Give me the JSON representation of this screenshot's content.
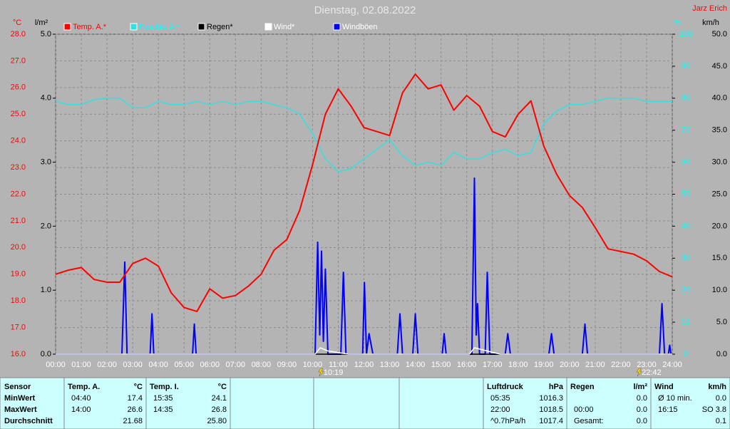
{
  "chart_data": {
    "type": "line",
    "title": "Dienstag, 02.08.2022",
    "author": "Jarz Erich",
    "y_label": "°C",
    "y2_label": "%",
    "y3_label": "l/m²",
    "y4_label": "km/h",
    "xlim": [
      0,
      24
    ],
    "xticks": [
      {
        "value": 0,
        "label": "00:00"
      },
      {
        "value": 1,
        "label": "01:00"
      },
      {
        "value": 2,
        "label": "02:00"
      },
      {
        "value": 3,
        "label": "03:00"
      },
      {
        "value": 4,
        "label": "04:00"
      },
      {
        "value": 5,
        "label": "05:00"
      },
      {
        "value": 6,
        "label": "06:00"
      },
      {
        "value": 7,
        "label": "07:00"
      },
      {
        "value": 8,
        "label": "08:00"
      },
      {
        "value": 9,
        "label": "09:00"
      },
      {
        "value": 10,
        "label": "10:00"
      },
      {
        "value": 11,
        "label": "11:00"
      },
      {
        "value": 12,
        "label": "12:00"
      },
      {
        "value": 13,
        "label": "13:00"
      },
      {
        "value": 14,
        "label": "14:00"
      },
      {
        "value": 15,
        "label": "15:00"
      },
      {
        "value": 16,
        "label": "16:00"
      },
      {
        "value": 17,
        "label": "17:00"
      },
      {
        "value": 18,
        "label": "18:00"
      },
      {
        "value": 19,
        "label": "19:00"
      },
      {
        "value": 20,
        "label": "20:00"
      },
      {
        "value": 21,
        "label": "21:00"
      },
      {
        "value": 22,
        "label": "22:00"
      },
      {
        "value": 23,
        "label": "23:00"
      },
      {
        "value": 24,
        "label": "24:00"
      }
    ],
    "ylim": [
      16,
      28
    ],
    "yticks": [
      {
        "value": 16,
        "label": "16.0"
      },
      {
        "value": 17,
        "label": "17.0"
      },
      {
        "value": 18,
        "label": "18.0"
      },
      {
        "value": 19,
        "label": "19.0"
      },
      {
        "value": 20,
        "label": "20.0"
      },
      {
        "value": 21,
        "label": "21.0"
      },
      {
        "value": 22,
        "label": "22.0"
      },
      {
        "value": 23,
        "label": "23.0"
      },
      {
        "value": 24,
        "label": "24.0"
      },
      {
        "value": 25,
        "label": "25.0"
      },
      {
        "value": 26,
        "label": "26.0"
      },
      {
        "value": 27,
        "label": "27.0"
      },
      {
        "value": 28,
        "label": "28.0"
      }
    ],
    "y2lim": [
      0,
      100
    ],
    "y2ticks": [
      0,
      10,
      20,
      30,
      40,
      50,
      60,
      70,
      80,
      90,
      100
    ],
    "y3lim": [
      0,
      5
    ],
    "y3ticks": [
      {
        "value": 0,
        "label": "0.0"
      },
      {
        "value": 1,
        "label": "1.0"
      },
      {
        "value": 2,
        "label": "2.0"
      },
      {
        "value": 3,
        "label": "3.0"
      },
      {
        "value": 4,
        "label": "4.0"
      },
      {
        "value": 5,
        "label": "5.0"
      }
    ],
    "y4lim": [
      0,
      50
    ],
    "y4ticks": [
      {
        "value": 0,
        "label": "0.0"
      },
      {
        "value": 5,
        "label": "5.0"
      },
      {
        "value": 10,
        "label": "10.0"
      },
      {
        "value": 15,
        "label": "15.0"
      },
      {
        "value": 20,
        "label": "20.0"
      },
      {
        "value": 25,
        "label": "25.0"
      },
      {
        "value": 30,
        "label": "30.0"
      },
      {
        "value": 35,
        "label": "35.0"
      },
      {
        "value": 40,
        "label": "40.0"
      },
      {
        "value": 45,
        "label": "45.0"
      },
      {
        "value": 50,
        "label": "50.0"
      }
    ],
    "grid": true,
    "series": [
      {
        "name": "Temp. A.*",
        "color": "#ff0000",
        "axis": "y",
        "x": [
          0,
          0.5,
          1,
          1.5,
          2,
          2.5,
          3,
          3.5,
          4,
          4.5,
          5,
          5.5,
          6,
          6.5,
          7,
          7.5,
          8,
          8.5,
          9,
          9.5,
          10,
          10.5,
          11,
          11.5,
          12,
          12.5,
          13,
          13.5,
          14,
          14.5,
          15,
          15.5,
          16,
          16.5,
          17,
          17.5,
          18,
          18.5,
          19,
          19.5,
          20,
          20.5,
          21,
          21.5,
          22,
          22.5,
          23,
          23.5,
          24
        ],
        "values": [
          19.0,
          19.15,
          19.25,
          18.8,
          18.7,
          18.7,
          19.4,
          19.6,
          19.3,
          18.3,
          17.75,
          17.6,
          18.45,
          18.1,
          18.2,
          18.55,
          19.0,
          19.9,
          20.3,
          21.4,
          23.1,
          25.0,
          25.95,
          25.3,
          24.5,
          24.35,
          24.2,
          25.8,
          26.5,
          25.95,
          26.1,
          25.15,
          25.7,
          25.3,
          24.35,
          24.15,
          25.0,
          25.5,
          23.8,
          22.75,
          21.95,
          21.5,
          20.75,
          19.95,
          19.85,
          19.75,
          19.5,
          19.1,
          18.9
        ]
      },
      {
        "name": "Feuchte A.*",
        "color": "#33e0e0",
        "axis": "y2",
        "x": [
          0,
          0.5,
          1,
          1.5,
          2,
          2.5,
          3,
          3.5,
          4,
          4.5,
          5,
          5.5,
          6,
          6.5,
          7,
          7.5,
          8,
          8.5,
          9,
          9.5,
          10,
          10.5,
          11,
          11.5,
          12,
          12.5,
          13,
          13.5,
          14,
          14.5,
          15,
          15.5,
          16,
          16.5,
          17,
          17.5,
          18,
          18.5,
          19,
          19.5,
          20,
          20.5,
          21,
          21.5,
          22,
          22.5,
          23,
          23.5,
          24
        ],
        "values": [
          79,
          78,
          78,
          79.5,
          80,
          80,
          77,
          77,
          79,
          78,
          78,
          79,
          78,
          79,
          78,
          79,
          79,
          78,
          77,
          75,
          69,
          61,
          57,
          58,
          61,
          64,
          67,
          62,
          59,
          60,
          59,
          63,
          61,
          61,
          63,
          64,
          62,
          63,
          72,
          76,
          78,
          78,
          79,
          80,
          80,
          80,
          79,
          79,
          79
        ]
      },
      {
        "name": "Regen*",
        "color": "#000000",
        "axis": "y3",
        "x": [
          0,
          24
        ],
        "values": [
          0,
          0
        ]
      },
      {
        "name": "Wind*",
        "color": "#ffffff",
        "axis": "y4",
        "x": [
          0,
          10.1,
          10.3,
          10.6,
          11.4,
          16.1,
          16.3,
          16.8,
          17.3,
          24
        ],
        "values": [
          0,
          0,
          1,
          0.5,
          0,
          0,
          1,
          0.5,
          0,
          0
        ]
      },
      {
        "name": "Windböen",
        "color": "#0000ff",
        "axis": "y4",
        "x": [
          0,
          2.58,
          2.69,
          2.78,
          3.68,
          3.75,
          3.82,
          5.33,
          5.4,
          5.47,
          10.1,
          10.2,
          10.28,
          10.35,
          10.42,
          10.5,
          10.6,
          11.1,
          11.2,
          11.3,
          11.95,
          12.02,
          12.1,
          12.2,
          12.35,
          13.3,
          13.4,
          13.5,
          13.9,
          14.0,
          14.1,
          15.05,
          15.12,
          15.2,
          16.2,
          16.3,
          16.37,
          16.42,
          16.5,
          16.72,
          16.8,
          16.9,
          17.5,
          17.6,
          17.7,
          19.2,
          19.3,
          19.4,
          20.5,
          20.6,
          20.7,
          23.5,
          23.6,
          23.7,
          23.85,
          23.9,
          23.95,
          24
        ],
        "values": [
          0,
          0,
          14.4,
          0,
          0,
          6.3,
          0,
          0,
          4.7,
          0,
          0,
          17.5,
          3,
          16.1,
          2,
          13.3,
          0,
          0,
          12.8,
          0,
          0,
          11.2,
          0,
          3.2,
          0,
          0,
          6.3,
          0,
          0,
          6.3,
          0,
          0,
          3.2,
          0,
          0,
          27.5,
          3,
          7.9,
          0,
          0,
          12.8,
          0,
          0,
          3.2,
          0,
          0,
          3.2,
          0,
          0,
          4.7,
          0,
          0,
          7.9,
          0,
          0,
          1.4,
          0,
          0
        ]
      }
    ],
    "annotations": [
      {
        "x": 10.317,
        "label": "10:19"
      },
      {
        "x": 22.7,
        "label": "22:42"
      }
    ]
  },
  "stats_table": {
    "sensor": {
      "header": "Sensor",
      "rows": [
        "MinWert",
        "MaxWert",
        "Durchschnitt"
      ]
    },
    "blocks": [
      {
        "title": "Temp. A.",
        "unit": "°C",
        "min": {
          "label": "04:40",
          "value": "17.4"
        },
        "max": {
          "label": "14:00",
          "value": "26.6"
        },
        "average": {
          "value": "21.68"
        }
      },
      {
        "title": "Temp. I.",
        "unit": "°C",
        "min": {
          "label": "15:35",
          "value": "24.1"
        },
        "max": {
          "label": "14:35",
          "value": "26.8"
        },
        "average": {
          "value": "25.80"
        }
      },
      {
        "title": "Luftdruck",
        "unit": "hPa",
        "min": {
          "label": "05:35",
          "value": "1016.3"
        },
        "max": {
          "label": "22:00",
          "value": "1018.5"
        },
        "average": {
          "label": "^0.7hPa/h",
          "value": "1017.4"
        }
      },
      {
        "title": "Regen",
        "unit": "l/m²",
        "min": {
          "value": "0.0"
        },
        "max": {
          "label": "00:00",
          "value": "0.0"
        },
        "average": {
          "label": "Gesamt:",
          "value": "0.0"
        }
      },
      {
        "title": "Wind",
        "unit": "km/h",
        "min": {
          "label": "Ø 10 min.",
          "value": "0.0"
        },
        "max": {
          "label": "16:15",
          "value": "SO 3.8"
        },
        "average": {
          "value": "0.1"
        }
      }
    ]
  }
}
